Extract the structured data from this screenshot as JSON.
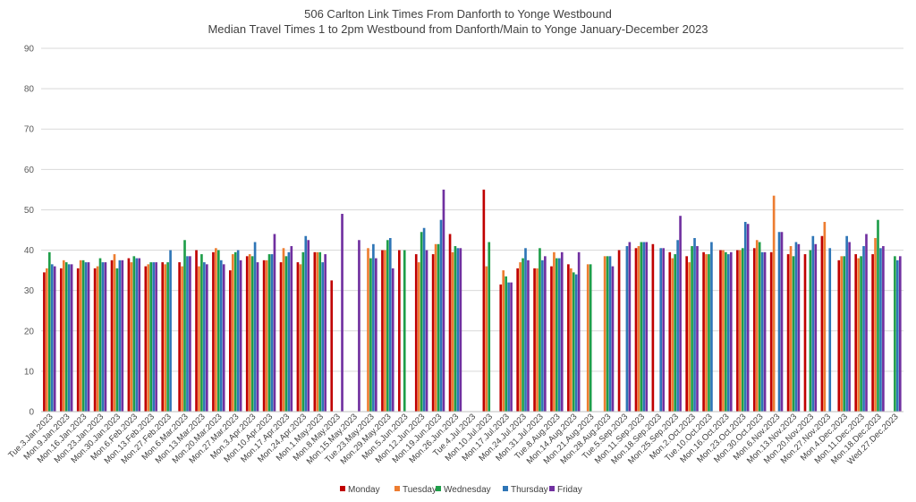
{
  "chart_data": {
    "type": "bar",
    "title": "506 Carlton Link Times From Danforth to Yonge Westbound",
    "subtitle": "Median Travel Times 1 to 2pm Westbound from Danforth/Main to Yonge January-December 2023",
    "ylim": [
      0,
      90
    ],
    "yticks": [
      0,
      10,
      20,
      30,
      40,
      50,
      60,
      70,
      80,
      90
    ],
    "grid": true,
    "legend_position": "bottom",
    "categories": [
      "Tue.3.Jan.2023",
      "Mon.9.Jan.2023",
      "Mon.16.Jan.2023",
      "Mon.23.Jan.2023",
      "Mon.30.Jan.2023",
      "Mon.6.Feb.2023",
      "Mon.13.Feb.2023",
      "Mon.27.Feb.2023",
      "Mon.6.Mar.2023",
      "Mon.13.Mar.2023",
      "Mon.20.Mar.2023",
      "Mon.27.Mar.2023",
      "Mon.3.Apr.2023",
      "Mon.10.Apr.2023",
      "Mon.17.Apr.2023",
      "Mon.24.Apr.2023",
      "Mon.1.May.2023",
      "Mon.8.May.2023",
      "Mon.15.May.2023",
      "Tue.23.May.2023",
      "Mon.29.May.2023",
      "Mon.5.Jun.2023",
      "Mon.12.Jun.2023",
      "Mon.19.Jun.2023",
      "Mon.26.Jun.2023",
      "Tue.4.Jul.2023",
      "Mon.10.Jul.2023",
      "Mon.17.Jul.2023",
      "Mon.24.Jul.2023",
      "Mon.31.Jul.2023",
      "Tue.8.Aug.2023",
      "Mon.14.Aug.2023",
      "Mon.21.Aug.2023",
      "Mon.28.Aug.2023",
      "Tue.5.Sep.2023",
      "Mon.11.Sep.2023",
      "Mon.18.Sep.2023",
      "Mon.25.Sep.2023",
      "Mon.2.Oct.2023",
      "Tue.10.Oct.2023",
      "Mon.16.Oct.2023",
      "Mon.23.Oct.2023",
      "Mon.30.Oct.2023",
      "Mon.6.Nov.2023",
      "Mon.13.Nov.2023",
      "Mon.20.Nov.2023",
      "Mon.27.Nov.2023",
      "Mon.4.Dec.2023",
      "Mon.11.Dec.2023",
      "Mon.18.Dec.2023",
      "Wed.27.Dec.2023"
    ],
    "series": [
      {
        "name": "Monday",
        "color": "#c00000",
        "values": [
          34.5,
          35.5,
          35.5,
          35.5,
          37.5,
          38,
          36,
          37,
          37,
          40,
          39.5,
          35,
          38.5,
          37.5,
          37,
          37,
          39.5,
          32.5,
          null,
          null,
          40,
          40,
          39,
          39,
          44,
          null,
          55,
          31.5,
          35.5,
          35.5,
          36,
          36.5,
          null,
          null,
          40,
          40.5,
          41.5,
          39.5,
          38.5,
          39.5,
          40,
          40,
          40.5,
          39.5,
          39,
          39,
          43.5,
          37.5,
          39,
          39,
          null
        ]
      },
      {
        "name": "Tuesday",
        "color": "#ed7d31",
        "values": [
          35.5,
          37.5,
          37.5,
          36,
          39,
          37,
          36.5,
          36.5,
          36,
          36,
          40.5,
          39,
          39,
          37.5,
          40.5,
          36.5,
          39.5,
          null,
          null,
          40.5,
          40,
          null,
          37,
          41.5,
          39.5,
          null,
          36,
          35,
          37,
          35.5,
          39.5,
          35.5,
          36.5,
          38.5,
          null,
          41,
          null,
          38,
          37,
          39,
          40,
          40,
          42.5,
          53.5,
          41,
          null,
          47,
          38.5,
          38,
          43,
          null
        ]
      },
      {
        "name": "Wednesday",
        "color": "#1f9e49",
        "values": [
          39.5,
          37,
          37.5,
          38,
          35.5,
          38.5,
          37,
          37,
          42.5,
          39,
          40,
          39.5,
          38.5,
          39,
          38.5,
          39.5,
          39.5,
          null,
          null,
          38,
          42.5,
          40,
          44.5,
          41.5,
          41,
          null,
          42,
          33.5,
          38,
          40.5,
          38,
          34.5,
          36.5,
          38.5,
          null,
          42,
          null,
          39,
          41,
          39,
          39.5,
          40.5,
          42,
          null,
          38.5,
          40,
          null,
          38.5,
          38.5,
          47.5,
          38.5
        ]
      },
      {
        "name": "Thursday",
        "color": "#2e75b6",
        "values": [
          36.5,
          36.5,
          37,
          37,
          37.5,
          38,
          37,
          40,
          38.5,
          37,
          37.5,
          40,
          42,
          39,
          39.5,
          43.5,
          37,
          null,
          null,
          41.5,
          43,
          null,
          45.5,
          47.5,
          40.5,
          null,
          null,
          32,
          40.5,
          37.5,
          38,
          34,
          null,
          38.5,
          41,
          42,
          40.5,
          42.5,
          43,
          42,
          39,
          47,
          39.5,
          44.5,
          42,
          43.5,
          40.5,
          43.5,
          41,
          40.5,
          37.5
        ]
      },
      {
        "name": "Friday",
        "color": "#7030a0",
        "values": [
          36,
          36.5,
          37,
          37,
          37.5,
          38,
          37,
          null,
          38.5,
          36.5,
          36.5,
          37.5,
          37,
          44,
          41,
          42.5,
          39,
          49,
          42.5,
          38,
          35.5,
          null,
          40,
          55,
          40.5,
          null,
          null,
          32,
          37.5,
          38.5,
          39.5,
          39.5,
          null,
          36,
          42,
          42,
          40.5,
          48.5,
          41,
          null,
          39.5,
          46.5,
          39.5,
          44.5,
          41.5,
          41.5,
          null,
          42,
          44,
          41,
          38.5
        ]
      }
    ]
  }
}
